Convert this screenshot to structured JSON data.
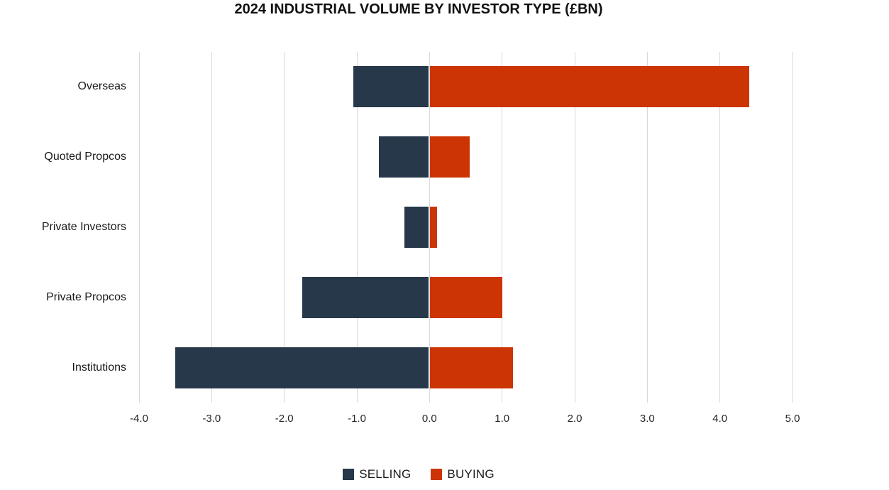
{
  "title": "2024 INDUSTRIAL VOLUME BY INVESTOR TYPE (£BN)",
  "colors": {
    "selling": "#263849",
    "buying": "#cc3403",
    "gridline": "#d9d9d9",
    "text": "#1a1a1a"
  },
  "legend": {
    "position": "bottom",
    "items": [
      {
        "label": "SELLING",
        "color": "#263849"
      },
      {
        "label": "BUYING",
        "color": "#cc3403"
      }
    ]
  },
  "chart_data": {
    "type": "bar",
    "orientation": "horizontal",
    "title": "2024 INDUSTRIAL VOLUME BY INVESTOR TYPE (£BN)",
    "categories": [
      "Overseas",
      "Quoted Propcos",
      "Private Investors",
      "Private Propcos",
      "Institutions"
    ],
    "series": [
      {
        "name": "SELLING",
        "color": "#263849",
        "values": [
          -1.05,
          -0.7,
          -0.35,
          -1.75,
          -3.5
        ]
      },
      {
        "name": "BUYING",
        "color": "#cc3403",
        "values": [
          4.4,
          0.55,
          0.1,
          1.0,
          1.15
        ]
      }
    ],
    "xlabel": "",
    "ylabel": "",
    "xlim": [
      -4.0,
      5.0
    ],
    "xticks": [
      -4.0,
      -3.0,
      -2.0,
      -1.0,
      0.0,
      1.0,
      2.0,
      3.0,
      4.0,
      5.0
    ],
    "xtick_labels": [
      "-4.0",
      "-3.0",
      "-2.0",
      "-1.0",
      "0.0",
      "1.0",
      "2.0",
      "3.0",
      "4.0",
      "5.0"
    ],
    "grid": "vertical",
    "legend_position": "bottom"
  }
}
